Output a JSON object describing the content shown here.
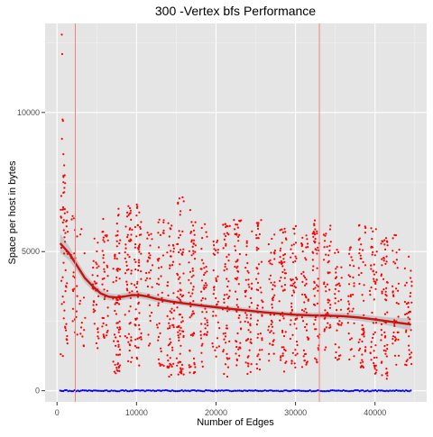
{
  "chart_data": {
    "type": "scatter",
    "title": "300 -Vertex  bfs  Performance",
    "xlabel": "Number of Edges",
    "ylabel": "Space per host in bytes",
    "xlim": [
      -1500,
      46500
    ],
    "ylim": [
      -400,
      13200
    ],
    "x_ticks": [
      0,
      10000,
      20000,
      30000,
      40000
    ],
    "x_tick_labels": [
      "0",
      "10000",
      "20000",
      "30000",
      "40000"
    ],
    "y_ticks": [
      0,
      5000,
      10000
    ],
    "y_tick_labels": [
      "0",
      "5000",
      "10000"
    ],
    "grid": true,
    "background": "#e5e5e5",
    "vlines": [
      2300,
      33000
    ],
    "vline_color": "#f8766d",
    "outliers": [
      {
        "x": 600,
        "y": 12800
      },
      {
        "x": 650,
        "y": 12100
      },
      {
        "x": 700,
        "y": 9750
      },
      {
        "x": 750,
        "y": 9700
      },
      {
        "x": 620,
        "y": 9050
      },
      {
        "x": 800,
        "y": 8500
      },
      {
        "x": 900,
        "y": 8100
      }
    ],
    "clusters": [
      {
        "x": 900,
        "ymin": 1200,
        "ymax": 8000,
        "n": 55
      },
      {
        "x": 2100,
        "ymin": 2000,
        "ymax": 6600,
        "n": 25
      },
      {
        "x": 3300,
        "ymin": 1600,
        "ymax": 6200,
        "n": 14
      },
      {
        "x": 4800,
        "ymin": 1500,
        "ymax": 5600,
        "n": 35
      },
      {
        "x": 6000,
        "ymin": 1700,
        "ymax": 6200,
        "n": 40
      },
      {
        "x": 7500,
        "ymin": 600,
        "ymax": 6600,
        "n": 75
      },
      {
        "x": 9000,
        "ymin": 900,
        "ymax": 6700,
        "n": 60
      },
      {
        "x": 10200,
        "ymin": 800,
        "ymax": 6700,
        "n": 65
      },
      {
        "x": 11600,
        "ymin": 1600,
        "ymax": 5700,
        "n": 30
      },
      {
        "x": 13000,
        "ymin": 800,
        "ymax": 6200,
        "n": 40
      },
      {
        "x": 14300,
        "ymin": 500,
        "ymax": 6300,
        "n": 60
      },
      {
        "x": 15500,
        "ymin": 500,
        "ymax": 7000,
        "n": 75
      },
      {
        "x": 17000,
        "ymin": 600,
        "ymax": 6500,
        "n": 60
      },
      {
        "x": 18500,
        "ymin": 800,
        "ymax": 6000,
        "n": 50
      },
      {
        "x": 20000,
        "ymin": 1200,
        "ymax": 5400,
        "n": 35
      },
      {
        "x": 21300,
        "ymin": 500,
        "ymax": 6000,
        "n": 55
      },
      {
        "x": 22700,
        "ymin": 800,
        "ymax": 6300,
        "n": 55
      },
      {
        "x": 24100,
        "ymin": 600,
        "ymax": 5800,
        "n": 50
      },
      {
        "x": 25500,
        "ymin": 700,
        "ymax": 6200,
        "n": 50
      },
      {
        "x": 27000,
        "ymin": 900,
        "ymax": 5700,
        "n": 45
      },
      {
        "x": 28400,
        "ymin": 600,
        "ymax": 6000,
        "n": 55
      },
      {
        "x": 29800,
        "ymin": 800,
        "ymax": 6000,
        "n": 55
      },
      {
        "x": 31200,
        "ymin": 600,
        "ymax": 5600,
        "n": 50
      },
      {
        "x": 32600,
        "ymin": 1000,
        "ymax": 6300,
        "n": 55
      },
      {
        "x": 34000,
        "ymin": 900,
        "ymax": 6000,
        "n": 50
      },
      {
        "x": 35400,
        "ymin": 1100,
        "ymax": 5200,
        "n": 40
      },
      {
        "x": 37000,
        "ymin": 1100,
        "ymax": 5200,
        "n": 35
      },
      {
        "x": 38400,
        "ymin": 800,
        "ymax": 6200,
        "n": 50
      },
      {
        "x": 39800,
        "ymin": 600,
        "ymax": 5900,
        "n": 55
      },
      {
        "x": 41200,
        "ymin": 300,
        "ymax": 5800,
        "n": 60
      },
      {
        "x": 42600,
        "ymin": 900,
        "ymax": 5800,
        "n": 40
      },
      {
        "x": 44200,
        "ymin": 700,
        "ymax": 4900,
        "n": 40
      }
    ],
    "series": [
      {
        "color": "#ff0000",
        "kind": "points"
      },
      {
        "color": "#0000ff",
        "kind": "points",
        "y_const": 0,
        "x_range": [
          400,
          44500
        ],
        "n": 220
      }
    ],
    "smooth": {
      "color": "#cc1111",
      "band_color": "#bfbfbf",
      "x": [
        400,
        1500,
        2500,
        3500,
        4500,
        5500,
        6500,
        7500,
        8500,
        9500,
        10500,
        11500,
        12500,
        14000,
        16000,
        18000,
        20000,
        22000,
        24000,
        26000,
        28000,
        30000,
        32000,
        34000,
        36000,
        38000,
        40000,
        42000,
        44500
      ],
      "y": [
        5300,
        4950,
        4500,
        4050,
        3750,
        3500,
        3380,
        3350,
        3390,
        3440,
        3430,
        3380,
        3300,
        3220,
        3140,
        3060,
        3000,
        2940,
        2880,
        2820,
        2770,
        2730,
        2710,
        2700,
        2680,
        2630,
        2560,
        2480,
        2380
      ],
      "band": [
        350,
        260,
        200,
        170,
        150,
        140,
        130,
        120,
        120,
        120,
        120,
        120,
        110,
        100,
        90,
        90,
        90,
        90,
        90,
        90,
        90,
        95,
        100,
        110,
        110,
        120,
        130,
        150,
        220
      ]
    }
  }
}
